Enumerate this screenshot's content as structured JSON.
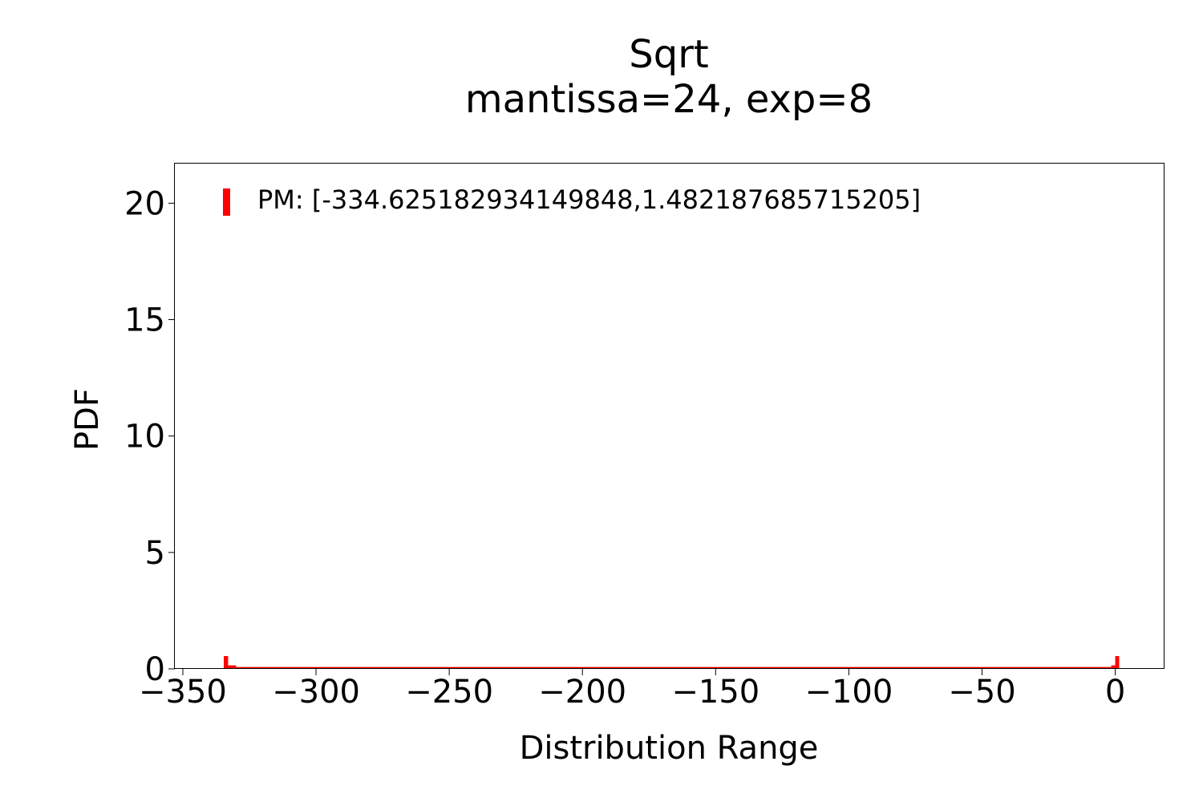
{
  "chart_data": {
    "type": "bar",
    "title": "Sqrt",
    "subtitle": "mantissa=24, exp=8",
    "xlabel": "Distribution Range",
    "ylabel": "PDF",
    "xlim": [
      -353,
      18.5
    ],
    "ylim": [
      0,
      21.7
    ],
    "x_ticks": [
      -350,
      -300,
      -250,
      -200,
      -150,
      -100,
      -50,
      0
    ],
    "x_tick_labels": [
      "−350",
      "−300",
      "−250",
      "−200",
      "−150",
      "−100",
      "−50",
      "0"
    ],
    "y_ticks": [
      0,
      5,
      10,
      15,
      20
    ],
    "y_tick_labels": [
      "0",
      "5",
      "10",
      "15",
      "20"
    ],
    "grid": false,
    "legend_position": "top-left",
    "series": [
      {
        "name": "PM: [-334.625182934149848,1.482187685715205]",
        "color": "#ff0000",
        "range": [
          -334.62518293414985,
          1.482187685715205
        ],
        "bins": [
          {
            "x0": -334.63,
            "x1": -333.0,
            "y": 0.55
          },
          {
            "x0": -333.0,
            "x1": -330.0,
            "y": 0.15
          },
          {
            "x0": -330.0,
            "x1": -1.5,
            "y": 0.08
          },
          {
            "x0": -1.5,
            "x1": 0.0,
            "y": 0.15
          },
          {
            "x0": 0.0,
            "x1": 1.48,
            "y": 0.55
          }
        ]
      }
    ]
  }
}
